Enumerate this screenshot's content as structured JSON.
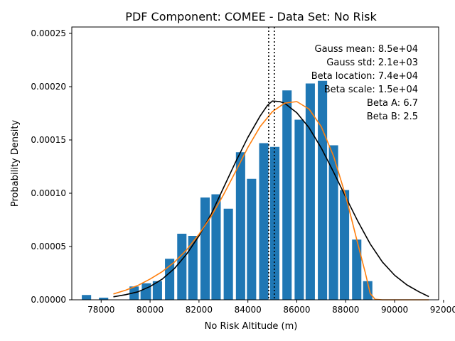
{
  "chart_data": {
    "type": "bar",
    "title": "PDF Component: COMEE - Data Set: No Risk",
    "xlabel": "No Risk Altitude (m)",
    "ylabel": "Probability Density",
    "xlim": [
      76800,
      91800
    ],
    "ylim": [
      0,
      0.000256
    ],
    "xticks": [
      78000,
      80000,
      82000,
      84000,
      86000,
      88000,
      90000,
      92000
    ],
    "xtick_labels": [
      "78000",
      "80000",
      "82000",
      "84000",
      "86000",
      "88000",
      "90000",
      "92000"
    ],
    "yticks": [
      0,
      5e-05,
      0.0001,
      0.00015,
      0.0002,
      0.00025
    ],
    "ytick_labels": [
      "0.00000",
      "0.00005",
      "0.00010",
      "0.00015",
      "0.00020",
      "0.00025"
    ],
    "bar_color": "#1f77b4",
    "bar_width": 380,
    "histogram": {
      "x": [
        77400,
        78100,
        79800,
        79350,
        79850,
        80300,
        80800,
        81300,
        81750,
        82250,
        82700,
        83200,
        83700,
        84150,
        84650,
        85100,
        85600,
        86100,
        86550,
        87050,
        87500,
        87950,
        88450,
        88900
      ],
      "values": [
        4.5e-06,
        2e-06,
        8.5e-06,
        1.25e-05,
        1.55e-05,
        1.75e-05,
        3.85e-05,
        6.2e-05,
        6e-05,
        9.6e-05,
        9.9e-05,
        8.55e-05,
        0.0001385,
        0.0001135,
        0.000147,
        0.0001435,
        0.0001965,
        0.000169,
        0.000203,
        0.0002055,
        0.000145,
        0.000103,
        5.65e-05,
        1.75e-05
      ]
    },
    "series": [
      {
        "name": "Gaussian",
        "color": "#000000",
        "x": [
          78500,
          79000,
          79500,
          80000,
          80500,
          81000,
          81500,
          82000,
          82500,
          83000,
          83500,
          84000,
          84500,
          84800,
          85000,
          85300,
          85500,
          86000,
          86500,
          87000,
          87500,
          88000,
          88500,
          89000,
          89500,
          90000,
          90500,
          91000,
          91400
        ],
        "y": [
          2.8e-06,
          4.8e-06,
          7.5e-06,
          1.25e-05,
          1.95e-05,
          2.95e-05,
          4.3e-05,
          6e-05,
          8.05e-05,
          0.000105,
          0.0001295,
          0.0001525,
          0.0001725,
          0.0001825,
          0.0001865,
          0.000186,
          0.0001845,
          0.0001755,
          0.0001615,
          0.0001425,
          0.00012,
          9.65e-05,
          7.35e-05,
          5.25e-05,
          3.55e-05,
          2.3e-05,
          1.4e-05,
          7.5e-06,
          3e-06
        ]
      },
      {
        "name": "Beta",
        "color": "#ff7f0e",
        "x": [
          78500,
          79000,
          79500,
          80000,
          80500,
          81000,
          81500,
          82000,
          82500,
          83000,
          83500,
          84000,
          84500,
          85000,
          85500,
          86000,
          86500,
          87000,
          87500,
          88000,
          88500,
          88800,
          89000,
          89200,
          89500,
          90000,
          91400
        ],
        "y": [
          5.5e-06,
          9e-06,
          1.35e-05,
          1.95e-05,
          2.65e-05,
          3.55e-05,
          4.7e-05,
          6.15e-05,
          7.85e-05,
          9.85e-05,
          0.0001205,
          0.000143,
          0.0001625,
          0.0001765,
          0.0001845,
          0.000186,
          0.000179,
          0.0001625,
          0.000135,
          9.75e-05,
          5.2e-05,
          2.55e-05,
          6e-06,
          5e-07,
          0,
          0,
          0
        ]
      }
    ],
    "vlines": [
      {
        "x": 84850,
        "style": "dotted",
        "color": "#000000"
      },
      {
        "x": 85080,
        "style": "dotted",
        "color": "#000000"
      }
    ],
    "annotations": [
      "Gauss mean: 8.5e+04",
      "Gauss std: 2.1e+03",
      "Beta location: 7.4e+04",
      "Beta scale: 1.5e+04",
      "Beta A: 6.7",
      "Beta B: 2.5"
    ],
    "grid": false
  }
}
